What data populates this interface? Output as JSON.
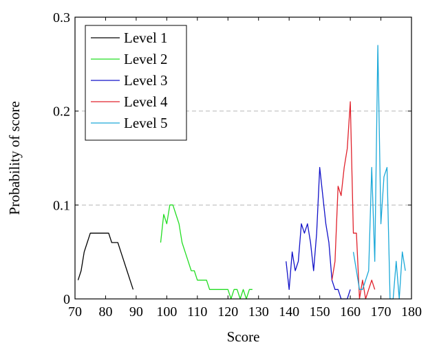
{
  "chart_data": {
    "type": "line",
    "title": "",
    "xlabel": "Score",
    "ylabel": "Probability of score",
    "xlim": [
      70,
      180
    ],
    "ylim": [
      0,
      0.3
    ],
    "xticks": [
      70,
      80,
      90,
      100,
      110,
      120,
      130,
      140,
      150,
      160,
      170,
      180
    ],
    "xtick_labels": [
      "70",
      "80",
      "90",
      "100",
      "110",
      "120",
      "130",
      "140",
      "150",
      "160",
      "170",
      "180"
    ],
    "yticks": [
      0,
      0.1,
      0.2,
      0.3
    ],
    "ytick_labels": [
      "0",
      "0.1",
      "0.2",
      "0.3"
    ],
    "grid": "horizontal dashed at 0.1 and 0.2",
    "legend_position": "top-left",
    "series": [
      {
        "name": "Level 1",
        "color": "#000000",
        "x": [
          71,
          72,
          73,
          74,
          75,
          76,
          77,
          78,
          79,
          80,
          81,
          82,
          83,
          84,
          85,
          86,
          87,
          88,
          89
        ],
        "y": [
          0.02,
          0.03,
          0.05,
          0.06,
          0.07,
          0.07,
          0.07,
          0.07,
          0.07,
          0.07,
          0.07,
          0.06,
          0.06,
          0.06,
          0.05,
          0.04,
          0.03,
          0.02,
          0.01
        ]
      },
      {
        "name": "Level 2",
        "color": "#22dd22",
        "x": [
          98,
          99,
          100,
          101,
          102,
          103,
          104,
          105,
          106,
          107,
          108,
          109,
          110,
          111,
          112,
          113,
          114,
          115,
          116,
          117,
          118,
          119,
          120,
          121,
          122,
          123,
          124,
          125,
          126,
          127,
          128
        ],
        "y": [
          0.06,
          0.09,
          0.08,
          0.1,
          0.1,
          0.09,
          0.08,
          0.06,
          0.05,
          0.04,
          0.03,
          0.03,
          0.02,
          0.02,
          0.02,
          0.02,
          0.01,
          0.01,
          0.01,
          0.01,
          0.01,
          0.01,
          0.01,
          0.0,
          0.01,
          0.01,
          0.0,
          0.01,
          0.0,
          0.01,
          0.01
        ]
      },
      {
        "name": "Level 3",
        "color": "#1010c8",
        "x": [
          139,
          140,
          141,
          142,
          143,
          144,
          145,
          146,
          147,
          148,
          149,
          150,
          151,
          152,
          153,
          154,
          155,
          156,
          157,
          158,
          159,
          160
        ],
        "y": [
          0.04,
          0.01,
          0.05,
          0.03,
          0.04,
          0.08,
          0.07,
          0.08,
          0.06,
          0.03,
          0.07,
          0.14,
          0.11,
          0.08,
          0.06,
          0.02,
          0.01,
          0.01,
          0.0,
          0.0,
          0.0,
          0.01
        ]
      },
      {
        "name": "Level 4",
        "color": "#e0202a",
        "x": [
          154,
          155,
          156,
          157,
          158,
          159,
          160,
          161,
          162,
          163,
          164,
          165,
          166,
          167,
          168
        ],
        "y": [
          0.02,
          0.04,
          0.12,
          0.11,
          0.14,
          0.16,
          0.21,
          0.07,
          0.07,
          0.0,
          0.02,
          0.0,
          0.01,
          0.02,
          0.01
        ]
      },
      {
        "name": "Level 5",
        "color": "#1aa8d8",
        "x": [
          161,
          162,
          163,
          164,
          165,
          166,
          167,
          168,
          169,
          170,
          171,
          172,
          173,
          174,
          175,
          176,
          177,
          178
        ],
        "y": [
          0.05,
          0.03,
          0.01,
          0.01,
          0.02,
          0.03,
          0.14,
          0.04,
          0.27,
          0.08,
          0.13,
          0.14,
          0.0,
          0.0,
          0.04,
          0.0,
          0.05,
          0.03
        ]
      }
    ]
  }
}
